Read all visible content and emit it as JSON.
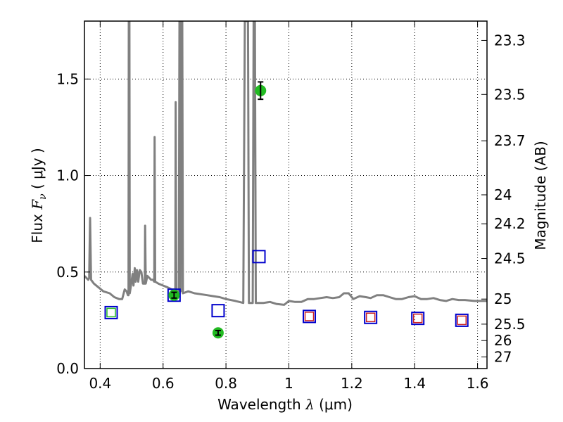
{
  "chart_data": {
    "type": "scatter",
    "xlabel": {
      "pre": "Wavelength  ",
      "sym": "λ",
      "post": " (μm)"
    },
    "ylabel": {
      "pre": "Flux  ",
      "sym": "F",
      "sub": "ν",
      "post": "  ( μJy )"
    },
    "y2label": "Magnitude (AB)",
    "xlim": [
      0.35,
      1.63
    ],
    "ylim": [
      0.0,
      1.8
    ],
    "grid": true,
    "x_ticks": [
      0.4,
      0.6,
      0.8,
      1.0,
      1.2,
      1.4,
      1.6
    ],
    "x_tick_labels": [
      "0.4",
      "0.6",
      "0.8",
      "1",
      "1.2",
      "1.4",
      "1.6"
    ],
    "y_ticks": [
      0.0,
      0.5,
      1.0,
      1.5
    ],
    "y_tick_labels": [
      "0.0",
      "0.5",
      "1.0",
      "1.5"
    ],
    "y2_ticks": [
      {
        "label": "23.3",
        "flux": 1.7
      },
      {
        "label": "23.5",
        "flux": 1.42
      },
      {
        "label": "23.7",
        "flux": 1.18
      },
      {
        "label": "24",
        "flux": 0.9
      },
      {
        "label": "24.2",
        "flux": 0.75
      },
      {
        "label": "24.5",
        "flux": 0.57
      },
      {
        "label": "25",
        "flux": 0.36
      },
      {
        "label": "25.5",
        "flux": 0.23
      },
      {
        "label": "26",
        "flux": 0.145
      },
      {
        "label": "27",
        "flux": 0.06
      }
    ],
    "series": [
      {
        "kind": "model_spectrum",
        "color": "#808080",
        "points": [
          [
            0.35,
            0.48
          ],
          [
            0.362,
            0.46
          ],
          [
            0.365,
            0.47
          ],
          [
            0.368,
            0.78
          ],
          [
            0.371,
            0.46
          ],
          [
            0.38,
            0.44
          ],
          [
            0.395,
            0.42
          ],
          [
            0.41,
            0.4
          ],
          [
            0.43,
            0.39
          ],
          [
            0.445,
            0.37
          ],
          [
            0.46,
            0.36
          ],
          [
            0.47,
            0.36
          ],
          [
            0.478,
            0.41
          ],
          [
            0.484,
            0.4
          ],
          [
            0.488,
            0.38
          ],
          [
            0.49,
            0.38
          ],
          [
            0.491,
            1.8
          ],
          [
            0.493,
            1.8
          ],
          [
            0.494,
            0.39
          ],
          [
            0.498,
            0.43
          ],
          [
            0.503,
            0.49
          ],
          [
            0.506,
            0.43
          ],
          [
            0.51,
            0.52
          ],
          [
            0.513,
            0.45
          ],
          [
            0.517,
            0.51
          ],
          [
            0.521,
            0.45
          ],
          [
            0.526,
            0.51
          ],
          [
            0.531,
            0.5
          ],
          [
            0.536,
            0.44
          ],
          [
            0.542,
            0.44
          ],
          [
            0.543,
            0.74
          ],
          [
            0.545,
            0.44
          ],
          [
            0.55,
            0.48
          ],
          [
            0.556,
            0.47
          ],
          [
            0.562,
            0.46
          ],
          [
            0.568,
            0.46
          ],
          [
            0.572,
            0.45
          ],
          [
            0.573,
            1.2
          ],
          [
            0.575,
            0.45
          ],
          [
            0.585,
            0.44
          ],
          [
            0.6,
            0.43
          ],
          [
            0.615,
            0.42
          ],
          [
            0.628,
            0.41
          ],
          [
            0.637,
            0.41
          ],
          [
            0.639,
            0.4
          ],
          [
            0.64,
            1.38
          ],
          [
            0.642,
            0.4
          ],
          [
            0.647,
            0.4
          ],
          [
            0.65,
            0.4
          ],
          [
            0.652,
            1.8
          ],
          [
            0.654,
            1.8
          ],
          [
            0.656,
            0.4
          ],
          [
            0.658,
            1.8
          ],
          [
            0.661,
            1.8
          ],
          [
            0.663,
            0.39
          ],
          [
            0.68,
            0.4
          ],
          [
            0.7,
            0.39
          ],
          [
            0.72,
            0.385
          ],
          [
            0.74,
            0.38
          ],
          [
            0.76,
            0.375
          ],
          [
            0.78,
            0.37
          ],
          [
            0.8,
            0.36
          ],
          [
            0.83,
            0.35
          ],
          [
            0.855,
            0.34
          ],
          [
            0.86,
            1.8
          ],
          [
            0.87,
            1.8
          ],
          [
            0.873,
            0.34
          ],
          [
            0.885,
            0.34
          ],
          [
            0.888,
            1.8
          ],
          [
            0.892,
            1.8
          ],
          [
            0.895,
            0.34
          ],
          [
            0.92,
            0.34
          ],
          [
            0.94,
            0.345
          ],
          [
            0.96,
            0.335
          ],
          [
            0.985,
            0.33
          ],
          [
            1.0,
            0.35
          ],
          [
            1.02,
            0.345
          ],
          [
            1.04,
            0.345
          ],
          [
            1.06,
            0.36
          ],
          [
            1.08,
            0.36
          ],
          [
            1.1,
            0.365
          ],
          [
            1.12,
            0.37
          ],
          [
            1.14,
            0.365
          ],
          [
            1.16,
            0.37
          ],
          [
            1.175,
            0.39
          ],
          [
            1.19,
            0.39
          ],
          [
            1.205,
            0.36
          ],
          [
            1.225,
            0.375
          ],
          [
            1.245,
            0.37
          ],
          [
            1.26,
            0.365
          ],
          [
            1.28,
            0.38
          ],
          [
            1.3,
            0.38
          ],
          [
            1.32,
            0.37
          ],
          [
            1.34,
            0.36
          ],
          [
            1.36,
            0.36
          ],
          [
            1.38,
            0.37
          ],
          [
            1.4,
            0.375
          ],
          [
            1.42,
            0.36
          ],
          [
            1.44,
            0.36
          ],
          [
            1.46,
            0.365
          ],
          [
            1.48,
            0.355
          ],
          [
            1.5,
            0.35
          ],
          [
            1.52,
            0.36
          ],
          [
            1.54,
            0.355
          ],
          [
            1.56,
            0.355
          ],
          [
            1.59,
            0.35
          ],
          [
            1.63,
            0.35
          ]
        ]
      },
      {
        "kind": "observed_photometry",
        "color": "#22bb22",
        "points": [
          {
            "x": 0.635,
            "y": 0.38,
            "err": 0.015
          },
          {
            "x": 0.775,
            "y": 0.185,
            "err": 0.012
          },
          {
            "x": 0.91,
            "y": 1.44,
            "err": 0.045
          }
        ]
      },
      {
        "kind": "model_photometry_blue",
        "color": "#0000cc",
        "points": [
          [
            0.435,
            0.29
          ],
          [
            0.635,
            0.38
          ],
          [
            0.775,
            0.3
          ],
          [
            0.905,
            0.58
          ],
          [
            1.065,
            0.27
          ],
          [
            1.26,
            0.265
          ],
          [
            1.41,
            0.26
          ],
          [
            1.55,
            0.25
          ]
        ]
      },
      {
        "kind": "model_photometry_green",
        "color": "#22bb22",
        "points": [
          [
            0.435,
            0.29
          ]
        ]
      },
      {
        "kind": "model_photometry_red",
        "color": "#cc2222",
        "points": [
          [
            1.065,
            0.27
          ],
          [
            1.26,
            0.265
          ],
          [
            1.41,
            0.26
          ],
          [
            1.55,
            0.25
          ]
        ]
      }
    ]
  }
}
